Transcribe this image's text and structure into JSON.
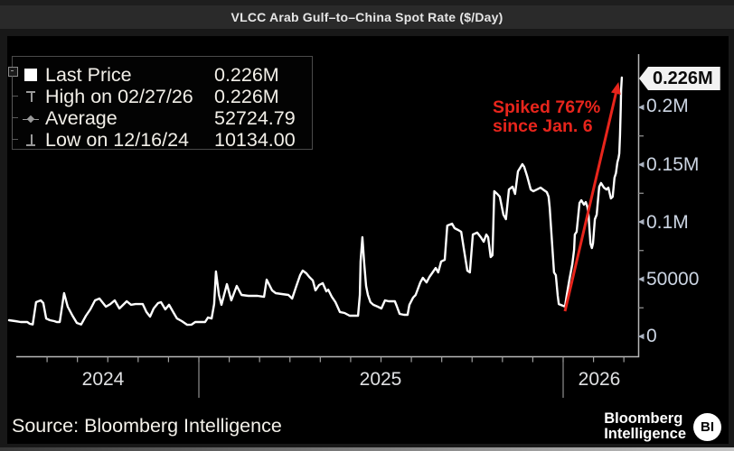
{
  "title_bar": {
    "title": "VLCC Arab Gulf–to–China Spot Rate ($/Day)"
  },
  "legend": {
    "rows": [
      {
        "icon": "last-price-square",
        "label": "Last Price",
        "value": "0.226M"
      },
      {
        "icon": "high-marker",
        "label": "High on 02/27/26",
        "value": "0.226M"
      },
      {
        "icon": "average-marker",
        "label": "Average",
        "value": "52724.79"
      },
      {
        "icon": "low-marker",
        "label": "Low on 12/16/24",
        "value": "10134.00"
      }
    ]
  },
  "annotation": {
    "line1": "Spiked 767%",
    "line2": "since Jan. 6",
    "color": "#e8251c"
  },
  "footer": {
    "source": "Source: Bloomberg Intelligence",
    "logo_line1": "Bloomberg",
    "logo_line2": "Intelligence",
    "logo_badge": "BI"
  },
  "chart_data": {
    "type": "line",
    "title": "VLCC Arab Gulf–to–China Spot Rate ($/Day)",
    "xlabel": "",
    "ylabel": "$/Day",
    "x_axis": {
      "labels": [
        "2024",
        "2025",
        "2026"
      ],
      "range_decimal_years": [
        2024.47,
        2026.21
      ],
      "year_boundaries": [
        2025.0,
        2026.0
      ]
    },
    "y_axis": {
      "ticks": [
        {
          "value": 0,
          "label": "0"
        },
        {
          "value": 50000,
          "label": "50000"
        },
        {
          "value": 100000,
          "label": "0.1M"
        },
        {
          "value": 150000,
          "label": "0.15M"
        },
        {
          "value": 200000,
          "label": "0.2M"
        }
      ],
      "minor_tick_values": [
        25000,
        75000,
        125000,
        175000
      ],
      "last_price_tag": {
        "value": 226000,
        "label": "0.226M"
      }
    },
    "stats": {
      "last_price": "0.226M",
      "high_date": "02/27/26",
      "high": "0.226M",
      "average": 52724.79,
      "low_date": "12/16/24",
      "low": 10134.0
    },
    "grid": false,
    "legend_position": "top-left",
    "series": [
      {
        "name": "VLCC Arab Gulf-to-China Spot Rate",
        "color": "#ffffff",
        "points": [
          [
            2024.479,
            14200
          ],
          [
            2024.496,
            13400
          ],
          [
            2024.511,
            12600
          ],
          [
            2024.529,
            12600
          ],
          [
            2024.536,
            11000
          ],
          [
            2024.544,
            10500
          ],
          [
            2024.553,
            29900
          ],
          [
            2024.566,
            31500
          ],
          [
            2024.573,
            29100
          ],
          [
            2024.581,
            15700
          ],
          [
            2024.591,
            14200
          ],
          [
            2024.603,
            13400
          ],
          [
            2024.61,
            12600
          ],
          [
            2024.618,
            12600
          ],
          [
            2024.63,
            37800
          ],
          [
            2024.64,
            26000
          ],
          [
            2024.653,
            18100
          ],
          [
            2024.665,
            11800
          ],
          [
            2024.677,
            10500
          ],
          [
            2024.69,
            18100
          ],
          [
            2024.702,
            23600
          ],
          [
            2024.715,
            31500
          ],
          [
            2024.727,
            33100
          ],
          [
            2024.745,
            26000
          ],
          [
            2024.757,
            28300
          ],
          [
            2024.769,
            31500
          ],
          [
            2024.782,
            24400
          ],
          [
            2024.802,
            30700
          ],
          [
            2024.814,
            27600
          ],
          [
            2024.826,
            28300
          ],
          [
            2024.846,
            28300
          ],
          [
            2024.856,
            21300
          ],
          [
            2024.866,
            17300
          ],
          [
            2024.876,
            24400
          ],
          [
            2024.888,
            29100
          ],
          [
            2024.896,
            29900
          ],
          [
            2024.908,
            23600
          ],
          [
            2024.918,
            27600
          ],
          [
            2024.931,
            20500
          ],
          [
            2024.94,
            15700
          ],
          [
            2024.953,
            13400
          ],
          [
            2024.968,
            10134
          ],
          [
            2024.98,
            10300
          ],
          [
            2024.99,
            12600
          ],
          [
            2025.005,
            12600
          ],
          [
            2025.017,
            12600
          ],
          [
            2025.025,
            16500
          ],
          [
            2025.035,
            15700
          ],
          [
            2025.042,
            28300
          ],
          [
            2025.047,
            56700
          ],
          [
            2025.055,
            36200
          ],
          [
            2025.062,
            27600
          ],
          [
            2025.077,
            45700
          ],
          [
            2025.089,
            31500
          ],
          [
            2025.104,
            44100
          ],
          [
            2025.117,
            36200
          ],
          [
            2025.136,
            35400
          ],
          [
            2025.161,
            35400
          ],
          [
            2025.179,
            34600
          ],
          [
            2025.186,
            49600
          ],
          [
            2025.201,
            40200
          ],
          [
            2025.211,
            37800
          ],
          [
            2025.228,
            37000
          ],
          [
            2025.246,
            36200
          ],
          [
            2025.256,
            33100
          ],
          [
            2025.266,
            42500
          ],
          [
            2025.278,
            53500
          ],
          [
            2025.285,
            57500
          ],
          [
            2025.295,
            55100
          ],
          [
            2025.303,
            52000
          ],
          [
            2025.313,
            48800
          ],
          [
            2025.32,
            40200
          ],
          [
            2025.33,
            44900
          ],
          [
            2025.34,
            46500
          ],
          [
            2025.35,
            39400
          ],
          [
            2025.355,
            40900
          ],
          [
            2025.365,
            34600
          ],
          [
            2025.375,
            29900
          ],
          [
            2025.387,
            21300
          ],
          [
            2025.4,
            20500
          ],
          [
            2025.414,
            18100
          ],
          [
            2025.427,
            18100
          ],
          [
            2025.437,
            18100
          ],
          [
            2025.442,
            36200
          ],
          [
            2025.444,
            65400
          ],
          [
            2025.449,
            86600
          ],
          [
            2025.454,
            63000
          ],
          [
            2025.459,
            44100
          ],
          [
            2025.464,
            36200
          ],
          [
            2025.471,
            29900
          ],
          [
            2025.479,
            27600
          ],
          [
            2025.491,
            26000
          ],
          [
            2025.501,
            24400
          ],
          [
            2025.511,
            31500
          ],
          [
            2025.521,
            30700
          ],
          [
            2025.538,
            30700
          ],
          [
            2025.543,
            26800
          ],
          [
            2025.551,
            19700
          ],
          [
            2025.563,
            18900
          ],
          [
            2025.573,
            18900
          ],
          [
            2025.578,
            27600
          ],
          [
            2025.588,
            33900
          ],
          [
            2025.595,
            36200
          ],
          [
            2025.608,
            47200
          ],
          [
            2025.615,
            51200
          ],
          [
            2025.625,
            47200
          ],
          [
            2025.633,
            52000
          ],
          [
            2025.64,
            55100
          ],
          [
            2025.65,
            59800
          ],
          [
            2025.657,
            55900
          ],
          [
            2025.665,
            65400
          ],
          [
            2025.675,
            66900
          ],
          [
            2025.682,
            96800
          ],
          [
            2025.695,
            98400
          ],
          [
            2025.702,
            94500
          ],
          [
            2025.712,
            92900
          ],
          [
            2025.72,
            91300
          ],
          [
            2025.727,
            77200
          ],
          [
            2025.737,
            57500
          ],
          [
            2025.744,
            55900
          ],
          [
            2025.752,
            89000
          ],
          [
            2025.764,
            90600
          ],
          [
            2025.774,
            86600
          ],
          [
            2025.782,
            82700
          ],
          [
            2025.789,
            89000
          ],
          [
            2025.794,
            86600
          ],
          [
            2025.801,
            69300
          ],
          [
            2025.806,
            70900
          ],
          [
            2025.811,
            126800
          ],
          [
            2025.819,
            124400
          ],
          [
            2025.826,
            122000
          ],
          [
            2025.836,
            106300
          ],
          [
            2025.843,
            102400
          ],
          [
            2025.851,
            128300
          ],
          [
            2025.861,
            130700
          ],
          [
            2025.868,
            124400
          ],
          [
            2025.876,
            144100
          ],
          [
            2025.888,
            150400
          ],
          [
            2025.893,
            148000
          ],
          [
            2025.901,
            140100
          ],
          [
            2025.911,
            128300
          ],
          [
            2025.918,
            126800
          ],
          [
            2025.928,
            128300
          ],
          [
            2025.938,
            129900
          ],
          [
            2025.945,
            128300
          ],
          [
            2025.955,
            126000
          ],
          [
            2025.96,
            122000
          ],
          [
            2025.963,
            112600
          ],
          [
            2025.968,
            89000
          ],
          [
            2025.975,
            55900
          ],
          [
            2025.98,
            53500
          ],
          [
            2025.985,
            35400
          ],
          [
            2025.988,
            28300
          ],
          [
            2026.005,
            26100
          ],
          [
            2026.01,
            36200
          ],
          [
            2026.017,
            49600
          ],
          [
            2026.025,
            63000
          ],
          [
            2026.03,
            75600
          ],
          [
            2026.032,
            89000
          ],
          [
            2026.037,
            91300
          ],
          [
            2026.042,
            107000
          ],
          [
            2026.045,
            116500
          ],
          [
            2026.05,
            118900
          ],
          [
            2026.057,
            115000
          ],
          [
            2026.062,
            117300
          ],
          [
            2026.067,
            112600
          ],
          [
            2026.07,
            104700
          ],
          [
            2026.075,
            81100
          ],
          [
            2026.079,
            77200
          ],
          [
            2026.082,
            81100
          ],
          [
            2026.087,
            102400
          ],
          [
            2026.092,
            106300
          ],
          [
            2026.099,
            130700
          ],
          [
            2026.104,
            133900
          ],
          [
            2026.112,
            129900
          ],
          [
            2026.119,
            128300
          ],
          [
            2026.124,
            129900
          ],
          [
            2026.131,
            120500
          ],
          [
            2026.136,
            122000
          ],
          [
            2026.141,
            138600
          ],
          [
            2026.145,
            142500
          ],
          [
            2026.149,
            152000
          ],
          [
            2026.152,
            155900
          ],
          [
            2026.154,
            159800
          ],
          [
            2026.156,
            175600
          ],
          [
            2026.158,
            199200
          ],
          [
            2026.159,
            215000
          ],
          [
            2026.161,
            226000
          ]
        ]
      }
    ],
    "annotation_arrow": {
      "from_decimal_year": 2026.005,
      "from_value": 22000,
      "to_decimal_year": 2026.152,
      "to_value": 222000
    }
  }
}
